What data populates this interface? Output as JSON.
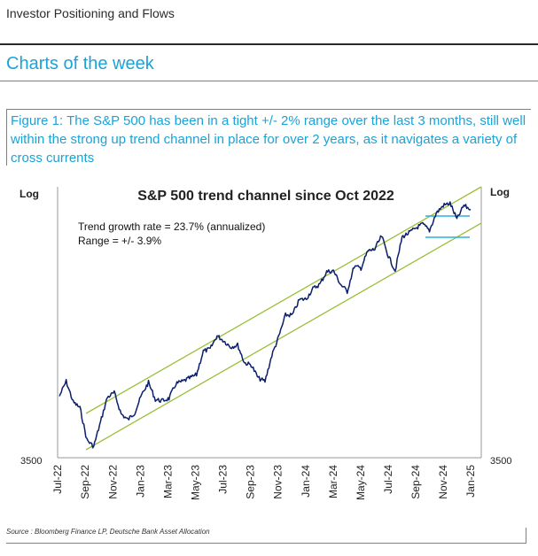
{
  "header": {
    "section": "Investor Positioning and Flows",
    "title": "Charts of the week"
  },
  "caption": "Figure 1: The S&P 500 has been in a tight +/- 2% range over the last 3 months, still well within the strong up trend channel in place for over 2 years, as it navigates a variety of cross currents",
  "source": "Source : Bloomberg Finance LP, Deutsche Bank Asset Allocation",
  "colors": {
    "accent": "#1aa3d8",
    "series": "#0b1f6b",
    "channel": "#9bbf3a",
    "range": "#2ab0e0"
  },
  "chart_data": {
    "type": "line",
    "title": "S&P 500 trend channel since Oct 2022",
    "scale": "log",
    "ylabel_left": "Log",
    "ylabel_right": "Log",
    "y_tick_label": "3500",
    "ylim": [
      3500,
      6300
    ],
    "x_tick_labels": [
      "Jul-22",
      "Sep-22",
      "Nov-22",
      "Jan-23",
      "Mar-23",
      "May-23",
      "Jul-23",
      "Sep-23",
      "Nov-23",
      "Jan-24",
      "Mar-24",
      "May-24",
      "Jul-24",
      "Sep-24",
      "Nov-24",
      "Jan-25"
    ],
    "annotations": [
      "Trend growth rate = 23.7% (annualized)",
      "Range = +/- 3.9%"
    ],
    "series": [
      {
        "x": [
          "Jul-22",
          "Aug-22",
          "Aug-22",
          "Sep-22",
          "Sep-22",
          "Oct-22",
          "Oct-22",
          "Nov-22",
          "Nov-22",
          "Dec-22",
          "Dec-22",
          "Jan-23",
          "Jan-23",
          "Feb-23",
          "Feb-23",
          "Mar-23",
          "Mar-23",
          "Apr-23",
          "Apr-23",
          "May-23",
          "May-23",
          "Jun-23",
          "Jun-23",
          "Jul-23",
          "Jul-23",
          "Aug-23",
          "Aug-23",
          "Sep-23",
          "Sep-23",
          "Oct-23",
          "Oct-23",
          "Nov-23",
          "Nov-23",
          "Dec-23",
          "Dec-23",
          "Jan-24",
          "Jan-24",
          "Feb-24",
          "Feb-24",
          "Mar-24",
          "Mar-24",
          "Apr-24",
          "Apr-24",
          "May-24",
          "May-24",
          "Jun-24",
          "Jun-24",
          "Jul-24",
          "Jul-24",
          "Aug-24",
          "Aug-24",
          "Sep-24",
          "Sep-24",
          "Oct-24",
          "Oct-24",
          "Nov-24",
          "Nov-24",
          "Dec-24",
          "Dec-24",
          "Jan-25",
          "Jan-25"
        ],
        "values": [
          4000,
          4130,
          3950,
          3900,
          3640,
          3585,
          3780,
          3990,
          4030,
          3850,
          3800,
          3860,
          4010,
          4120,
          3970,
          3960,
          3980,
          4110,
          4130,
          4160,
          4190,
          4410,
          4430,
          4560,
          4510,
          4450,
          4470,
          4300,
          4280,
          4160,
          4130,
          4370,
          4550,
          4770,
          4770,
          4930,
          4940,
          5050,
          5100,
          5240,
          5250,
          5100,
          5020,
          5300,
          5280,
          5480,
          5500,
          5660,
          5420,
          5250,
          5650,
          5700,
          5760,
          5810,
          5730,
          5950,
          6050,
          6080,
          5870,
          6050,
          6000
        ]
      }
    ]
  }
}
